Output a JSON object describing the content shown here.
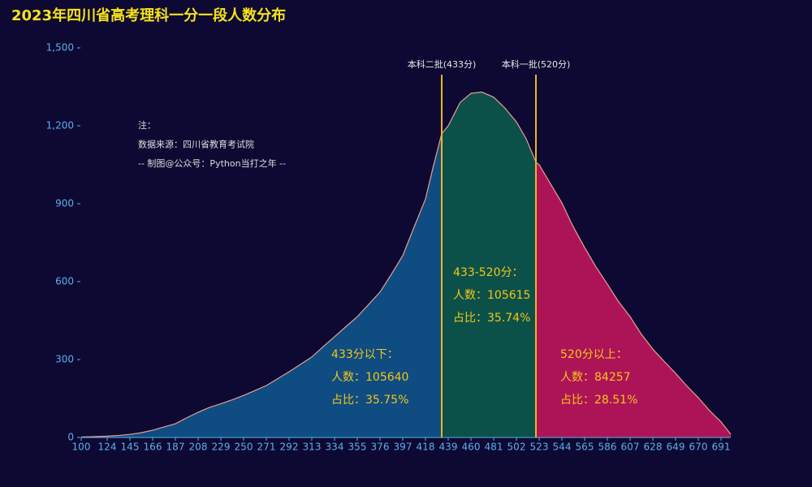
{
  "chart_data": {
    "type": "area",
    "title": "2023年四川省高考理科一分一段人数分布",
    "x": [
      100,
      110,
      124,
      135,
      145,
      155,
      166,
      176,
      187,
      197,
      208,
      218,
      229,
      240,
      250,
      260,
      271,
      281,
      292,
      302,
      313,
      323,
      334,
      344,
      355,
      365,
      376,
      386,
      397,
      407,
      418,
      425,
      433,
      439,
      450,
      460,
      470,
      481,
      491,
      502,
      511,
      520,
      523,
      533,
      544,
      554,
      565,
      575,
      586,
      596,
      607,
      617,
      628,
      638,
      649,
      659,
      670,
      680,
      691,
      700
    ],
    "values": [
      2,
      3,
      5,
      8,
      12,
      18,
      28,
      40,
      53,
      75,
      97,
      115,
      130,
      146,
      162,
      180,
      200,
      225,
      253,
      280,
      310,
      348,
      388,
      425,
      465,
      510,
      560,
      625,
      700,
      805,
      918,
      1040,
      1170,
      1200,
      1290,
      1325,
      1330,
      1310,
      1270,
      1215,
      1150,
      1060,
      1050,
      980,
      903,
      815,
      731,
      660,
      590,
      525,
      465,
      400,
      340,
      295,
      247,
      200,
      153,
      105,
      60,
      12
    ],
    "line_color": "#e7a08f",
    "xlim": [
      100,
      700
    ],
    "xticks": [
      100,
      124,
      145,
      166,
      187,
      208,
      229,
      250,
      271,
      292,
      313,
      334,
      355,
      376,
      397,
      418,
      439,
      460,
      481,
      502,
      523,
      544,
      565,
      586,
      607,
      628,
      649,
      670,
      691
    ],
    "ylim": [
      0,
      1500
    ],
    "yticks": [
      0,
      300,
      600,
      900,
      {
        "value": 1200,
        "label": "1,200"
      },
      {
        "value": 1500,
        "label": "1,500"
      }
    ],
    "mark_lines": [
      {
        "value": 433,
        "label": "本科二批(433分)"
      },
      {
        "value": 520,
        "label": "本科一批(520分)"
      }
    ],
    "mark_line_color": "#f0b323",
    "regions": [
      {
        "color": "#0f4c81",
        "texts": [
          "433分以下：",
          "人数：105640",
          "占比：35.75%"
        ]
      },
      {
        "color": "#0b5149",
        "texts": [
          "433-520分：",
          "人数：105615",
          "占比：35.74%"
        ]
      },
      {
        "color": "#ad1457",
        "texts": [
          "520分以上：",
          "人数：84257",
          "占比：28.51%"
        ]
      }
    ],
    "note": [
      "注：",
      "数据来源：四川省教育考试院",
      "-- 制图@公众号：Python当打之年 --"
    ]
  }
}
